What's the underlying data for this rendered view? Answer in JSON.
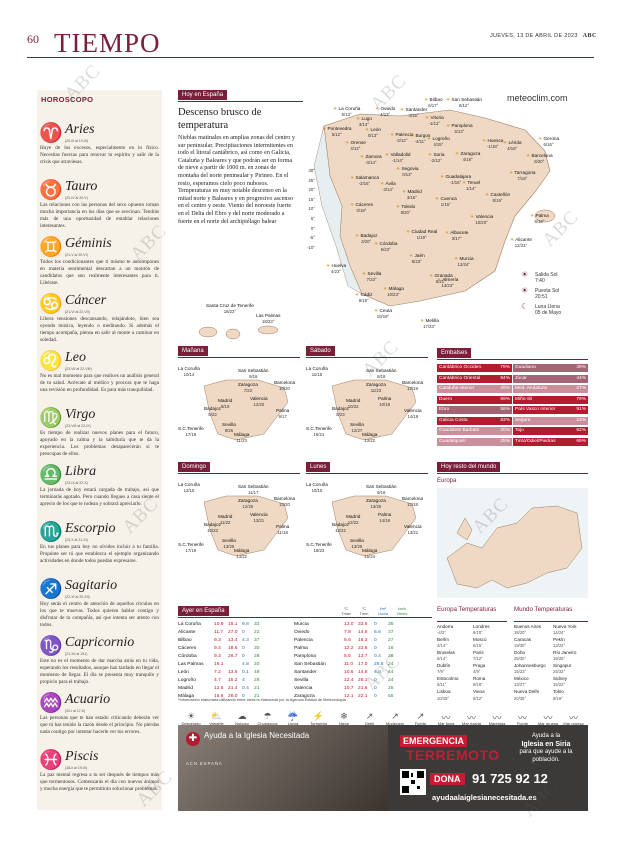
{
  "header": {
    "page_number": "60",
    "section": "TIEMPO",
    "dateline": "JUEVES, 13 DE ABRIL DE 2023",
    "paper": "ABC"
  },
  "horoscope": {
    "title": "HOROSCOPO",
    "signs": [
      {
        "symbol": "♈",
        "name": "Aries",
        "dates": "(20-III al 19-IV)",
        "text": "Huye de los excesos, especialmente en lo físico. Necesitas fuerzas para renovar tu espíritu y salir de la crisis que atraviesas."
      },
      {
        "symbol": "♉",
        "name": "Tauro",
        "dates": "(20-IV al 20-V)",
        "text": "Las relaciones con las personas del sexo opuesto toman mucha importancia en los días que se avecinan. Tendrás más de una oportunidad de entablar relaciones interesantes."
      },
      {
        "symbol": "♊",
        "name": "Géminis",
        "dates": "(21-V al 20-VI)",
        "text": "Todos los condicionantes que ti mismo te autoimpones en materia sentimental descartan a un montón de candidatos que son realmente interesantes para ti. Libérate."
      },
      {
        "symbol": "♋",
        "name": "Cáncer",
        "dates": "(21-VI al 22-VII)",
        "text": "Libera tensiones descansando, relajándote, bien sea oyendo música, leyendo o meditando. Si además el tiempo acompaña, piensa en salir al monte a caminar en soledad."
      },
      {
        "symbol": "♌",
        "name": "Leo",
        "dates": "(23-VII al 22-VIII)",
        "text": "No es mal momento para que realices un análisis general de tu salud. Acércate al médico y procura que te haga una revisión en profundidad. Es para más tranquilidad."
      },
      {
        "symbol": "♍",
        "name": "Virgo",
        "dates": "(23-VIII al 22-IX)",
        "text": "Es tiempo de realizar nuevos planes para el futuro, apoyado en la calma y la sabiduría que te da la experiencia. Los problemas desaparecerán si te preocupas de ellos."
      },
      {
        "symbol": "♎",
        "name": "Libra",
        "dates": "(23-IX al 22-X)",
        "text": "La jornada de hoy estará cargada de trabajo, así que terminarás agotado. Pero cuando llegues a casa siente el aprecio de los que te rodean y sobrará apreciarlo."
      },
      {
        "symbol": "♏",
        "name": "Escorpio",
        "dates": "(23-X al 21-XI)",
        "text": "En tus planes para hoy no olvides incluir a tu familia. Propónte ser tú que establezca el ejemplo organizando actividades en donde todos puedan expresarse."
      },
      {
        "symbol": "♐",
        "name": "Sagitario",
        "dates": "(22-XI al 20-XII)",
        "text": "Hoy serás el centro de atención de aquellos círculos en los que te muevas. Todos quieren hablar contigo y disfrutar de tu compañía, así que intenta ser atento con todos."
      },
      {
        "symbol": "♑",
        "name": "Capricornio",
        "dates": "(21-XII al 19-I)",
        "text": "Este no es el momento de dar marcha atrás en tu vida, esperando los resultados, aunque han tardado en llegar el momento de llegar. El día se presenta muy tranquilo y propicio para el trabajo."
      },
      {
        "symbol": "♒",
        "name": "Acuario",
        "dates": "(20-I al 17-II)",
        "text": "Las personas que te han estado criticando deberán ver que tú has tenido la razón desde el principio. No pierdas nada contigo por intentar hacerle ver tus errores."
      },
      {
        "symbol": "♓",
        "name": "Piscis",
        "dates": "(18-II al 19-III)",
        "text": "La paz mental regresa a tu ser después de tiempos más que tormentosos. Comenzarás el día con nuevos ánimos y mucha energía que te permitirán solucionar problemas."
      }
    ]
  },
  "spain": {
    "tag": "Hoy en España",
    "headline": "Descenso brusco de temperatura",
    "lede": "Nieblas matinales en amplias zonas del centro y sur peninsular. Precipitaciones intermitentes en todo el litoral cantábrico, así como en Galicia, Cataluña y Baleares y que podrán ser en forma de nieve a partir de 1000 m. en zonas de montaña del norte peninsular y Pirineo. En el resto, esperamos cielo poco nubosos. Temperaturas en muy notable descenso en la mitad norte y Baleares y en progresivo ascenso en el centro y oeste. Viento del noroeste fuerte en el Delta del Ebro y del norte moderado a fuerte en el norte del archipiélago balear",
    "brand": "meteoclim.com",
    "scale": [
      "30°",
      "25°",
      "20°",
      "15°",
      "10°",
      "5°",
      "0°",
      "-5°",
      "-10°"
    ],
    "cities": [
      {
        "n": "Bilbao",
        "t": "6/17°"
      },
      {
        "n": "San Sebastián",
        "t": "8/12°"
      },
      {
        "n": "La Coruña",
        "t": "5/13°"
      },
      {
        "n": "Oviedo",
        "t": "4/13°"
      },
      {
        "n": "Santander",
        "t": "4/15°"
      },
      {
        "n": "Vitoria",
        "t": "-1/12°"
      },
      {
        "n": "Pamplona",
        "t": "3/13°"
      },
      {
        "n": "Lugo",
        "t": "3/13°"
      },
      {
        "n": "Pontevedra",
        "t": "5/12°"
      },
      {
        "n": "León",
        "t": "0/13°"
      },
      {
        "n": "Palencia",
        "t": "-2/12°"
      },
      {
        "n": "Burgos",
        "t": "-4/11°"
      },
      {
        "n": "Logroño",
        "t": "4/15°"
      },
      {
        "n": "Huesca",
        "t": "-1/18°"
      },
      {
        "n": "Lérida",
        "t": "4/18°"
      },
      {
        "n": "Gerona",
        "t": "6/16°"
      },
      {
        "n": "Orense",
        "t": "4/12°"
      },
      {
        "n": "Zamora",
        "t": "-3/14°"
      },
      {
        "n": "Valladolid",
        "t": "-1/14°"
      },
      {
        "n": "Soria",
        "t": "-2/12°"
      },
      {
        "n": "Zaragoza",
        "t": "4/18°"
      },
      {
        "n": "Barcelona",
        "t": "8/20°"
      },
      {
        "n": "Tarragona",
        "t": "7/18°"
      },
      {
        "n": "Salamanca",
        "t": "-2/15°"
      },
      {
        "n": "Ávila",
        "t": "-3/14°"
      },
      {
        "n": "Segovia",
        "t": "0/13°"
      },
      {
        "n": "Guadalajara",
        "t": "-1/16°"
      },
      {
        "n": "Teruel",
        "t": "1/14°"
      },
      {
        "n": "Castellón",
        "t": "8/19°"
      },
      {
        "n": "Palma",
        "t": "9/16°"
      },
      {
        "n": "Cáceres",
        "t": "0/18°"
      },
      {
        "n": "Madrid",
        "t": "3/16°"
      },
      {
        "n": "Toledo",
        "t": "8/20°"
      },
      {
        "n": "Cuenca",
        "t": "1/16°"
      },
      {
        "n": "Valencia",
        "t": "10/20°"
      },
      {
        "n": "Badajoz",
        "t": "2/20°"
      },
      {
        "n": "Ciudad Real",
        "t": "1/19°"
      },
      {
        "n": "Albacete",
        "t": "3/17°"
      },
      {
        "n": "Alicante",
        "t": "12/23°"
      },
      {
        "n": "Córdoba",
        "t": "6/23°"
      },
      {
        "n": "Jaén",
        "t": "8/23°"
      },
      {
        "n": "Murcia",
        "t": "13/24°"
      },
      {
        "n": "Huelva",
        "t": "4/23°"
      },
      {
        "n": "Sevilla",
        "t": "7/23°"
      },
      {
        "n": "Granada",
        "t": "8/21°"
      },
      {
        "n": "Almería",
        "t": "14/23°"
      },
      {
        "n": "Málaga",
        "t": "10/23°"
      },
      {
        "n": "Cádiz",
        "t": "8/19°"
      },
      {
        "n": "Ceuta",
        "t": "10/19°"
      },
      {
        "n": "Melilla",
        "t": "17/23°"
      }
    ],
    "canarias": [
      {
        "n": "Santa Cruz de Tenerife",
        "t": "18/23°"
      },
      {
        "n": "Las Palmas",
        "t": "18/23°"
      }
    ],
    "legend": [
      {
        "icon": "☀",
        "label": "Salida Sol",
        "value": "7:40"
      },
      {
        "icon": "☀",
        "label": "Puesta Sol",
        "value": "20:51"
      },
      {
        "icon": "☾",
        "label": "Luna Llena",
        "value": "05 de Mayo"
      }
    ]
  },
  "forecast_maps": [
    {
      "label": "Mañana",
      "cities": [
        [
          "La Coruña",
          "10/14"
        ],
        [
          "San Sebastián",
          "9/16"
        ],
        [
          "Zaragoza",
          "7/22"
        ],
        [
          "Barcelona",
          "10/20"
        ],
        [
          "Madrid",
          "8/19"
        ],
        [
          "Valencia",
          "12/20"
        ],
        [
          "Badajoz",
          "9/23"
        ],
        [
          "Palma",
          "9/17"
        ],
        [
          "Sevilla",
          "9/26"
        ],
        [
          "S.C.Tenerife",
          "17/19"
        ],
        [
          "Málaga",
          "11/23"
        ]
      ]
    },
    {
      "label": "Sábado",
      "cities": [
        [
          "La Coruña",
          "11/15"
        ],
        [
          "San Sebastián",
          "8/18"
        ],
        [
          "Zaragoza",
          "11/23"
        ],
        [
          "Barcelona",
          "12/19"
        ],
        [
          "Madrid",
          "10/22"
        ],
        [
          "Palma",
          "10/18"
        ],
        [
          "Badajoz",
          "8/23"
        ],
        [
          "Valencia",
          "14/19"
        ],
        [
          "Sevilla",
          "12/27"
        ],
        [
          "S.C.Tenerife",
          "16/21"
        ],
        [
          "Málaga",
          "13/22"
        ]
      ]
    },
    {
      "label": "Domingo",
      "cities": [
        [
          "La Coruña",
          "12/15"
        ],
        [
          "San Sebastián",
          "11/17"
        ],
        [
          "Zaragoza",
          "12/25"
        ],
        [
          "Barcelona",
          "13/20"
        ],
        [
          "Madrid",
          "11/22"
        ],
        [
          "Valencia",
          "13/21"
        ],
        [
          "Badajoz",
          "10/23"
        ],
        [
          "Palma",
          "11/18"
        ],
        [
          "Sevilla",
          "13/25"
        ],
        [
          "S.C.Tenerife",
          "17/19"
        ],
        [
          "Málaga",
          "13/22"
        ]
      ]
    },
    {
      "label": "Lunes",
      "cities": [
        [
          "La Coruña",
          "10/15"
        ],
        [
          "San Sebastián",
          "9/16"
        ],
        [
          "Zaragoza",
          "13/25"
        ],
        [
          "Barcelona",
          "12/18"
        ],
        [
          "Madrid",
          "12/22"
        ],
        [
          "Palma",
          "14/18"
        ],
        [
          "Badajoz",
          "12/22"
        ],
        [
          "Valencia",
          "13/21"
        ],
        [
          "Sevilla",
          "13/25"
        ],
        [
          "S.C.Tenerife",
          "18/23"
        ],
        [
          "Málaga",
          "15/24"
        ]
      ]
    }
  ],
  "embalses": {
    "title": "Embalses",
    "left": [
      [
        "Cantábrico Occiden.",
        "79%"
      ],
      [
        "Cantábrico Oriental",
        "84%"
      ],
      [
        "Cataluña interior",
        "26%"
      ],
      [
        "Duero",
        "69%"
      ],
      [
        "Ebro",
        "56%"
      ],
      [
        "Galicia Costa",
        "83%"
      ],
      [
        "Guadalete Barbate",
        "20%"
      ],
      [
        "Guadalquivir",
        "25%"
      ]
    ],
    "right": [
      [
        "Guadiana",
        "39%"
      ],
      [
        "Júcar",
        "44%"
      ],
      [
        "Med. Andaluza",
        "27%"
      ],
      [
        "Miño-Sil",
        "79%"
      ],
      [
        "País Vasco Interior",
        "91%"
      ],
      [
        "Segura",
        "23%"
      ],
      [
        "Tajo",
        "62%"
      ],
      [
        "Tinto/Odiel/Piedras",
        "69%"
      ]
    ]
  },
  "world_map": {
    "tag": "Hoy resto del mundo",
    "region": "Europa"
  },
  "ayer": {
    "title": "Ayer en España",
    "headers": [
      "°C Tmáx",
      "°C Tmín",
      "l/m² Lluvia",
      "km/h Viento"
    ],
    "left": [
      [
        "La Coruña",
        "10.9",
        "15.1",
        "9.8",
        "33"
      ],
      [
        "Alicante",
        "11.7",
        "27.0",
        "0",
        "22"
      ],
      [
        "Bilbao",
        "9.3",
        "13.4",
        "4.3",
        "37"
      ],
      [
        "Cáceres",
        "9.4",
        "18.6",
        "0",
        "30"
      ],
      [
        "Córdoba",
        "9.3",
        "26.7",
        "0",
        "28"
      ],
      [
        "Las Palmas",
        "16.1",
        "",
        "4.8",
        "20"
      ],
      [
        "León",
        "7.2",
        "13.6",
        "0.1",
        "49"
      ],
      [
        "Logroño",
        "4.7",
        "15.2",
        "4",
        "28"
      ],
      [
        "Madrid",
        "12.6",
        "21.4",
        "0.4",
        "21"
      ],
      [
        "Málaga",
        "15.6",
        "28.0",
        "0",
        "21"
      ]
    ],
    "right": [
      [
        "Murcia",
        "13.0",
        "33.6",
        "0",
        "35"
      ],
      [
        "Oviedo",
        "7.8",
        "14.6",
        "6.6",
        "37"
      ],
      [
        "Palencia",
        "6.6",
        "16.3",
        "0",
        "27"
      ],
      [
        "Palma",
        "12.2",
        "22.6",
        "0",
        "16"
      ],
      [
        "Pamplona",
        "5.5",
        "13.7",
        "0.4",
        "28"
      ],
      [
        "San Sebastián",
        "11.0",
        "17.0",
        "25.6",
        "24"
      ],
      [
        "Santander",
        "10.6",
        "14.8",
        "4.8",
        "44"
      ],
      [
        "Sevilla",
        "12.4",
        "26.1",
        "0",
        "24"
      ],
      [
        "Valencia",
        "10.7",
        "21.6",
        "0",
        "25"
      ],
      [
        "Zaragoza",
        "12.1",
        "22.1",
        "0",
        "55"
      ]
    ],
    "note": "*Información elaborada utilizando entre otras la elaborada por la Agencia Estatal de Meteorología"
  },
  "europa_temps": {
    "title": "Europa Temperaturas",
    "col1": [
      [
        "Andorra",
        "-4/3°"
      ],
      [
        "Berlín",
        "4/14°"
      ],
      [
        "Bruselas",
        "5/14°"
      ],
      [
        "Dublín",
        "7/9°"
      ],
      [
        "Estocolmo",
        "5/11°"
      ],
      [
        "Lisboa",
        "10/19°"
      ]
    ],
    "col2": [
      [
        "Londres",
        "6/10°"
      ],
      [
        "Moscú",
        "6/15°"
      ],
      [
        "París",
        "7/12°"
      ],
      [
        "Praga",
        "4/9°"
      ],
      [
        "Roma",
        "9/18°"
      ],
      [
        "Viena",
        "5/12°"
      ]
    ]
  },
  "mundo_temps": {
    "title": "Mundo Temperaturas",
    "col1": [
      [
        "Buenos Aires",
        "18/20°"
      ],
      [
        "Caracas",
        "19/30°"
      ],
      [
        "Doha",
        "25/30°"
      ],
      [
        "Johannesburgo",
        "15/23°"
      ],
      [
        "México",
        "13/27°"
      ],
      [
        "Nueva Delhi",
        "20/35°"
      ]
    ],
    "col2": [
      [
        "Nueva York",
        "14/24°"
      ],
      [
        "Pekín",
        "13/22°"
      ],
      [
        "Río Janeiro",
        "18/25°"
      ],
      [
        "Singapur",
        "25/32°"
      ],
      [
        "Sidney",
        "15/22°"
      ],
      [
        "Tokio",
        "9/19°"
      ]
    ]
  },
  "symbols": [
    "Despejado",
    "Variable",
    "Nuboso",
    "Chubascos",
    "Lluvia",
    "Tormenta",
    "Nieve",
    "Débil",
    "Moderado",
    "Fuerte",
    "Mar llana",
    "Mar rizada",
    "Marejada",
    "Fuerte marejada",
    "Mar gruesa",
    "Mar gruesa"
  ],
  "ad": {
    "headline_left": "Ayuda a la Iglesia Necesitada",
    "org": "ACN ESPAÑA",
    "emergency1": "EMERGENCIA",
    "emergency2": "TERREMOTO",
    "right_text1": "Ayuda a la",
    "right_text2": "Iglesia en Siria",
    "right_text3": "para que ayude a la población.",
    "dona": "DONA",
    "phone": "91 725 92 12",
    "web": "ayudaalaiglesianecesitada.es"
  },
  "watermark": "ABC",
  "colors": {
    "accent": "#7a1e3a",
    "embalse_high": "#b31b2f",
    "embalse_mid": "#a46473",
    "embalse_light": "#c9909c"
  }
}
